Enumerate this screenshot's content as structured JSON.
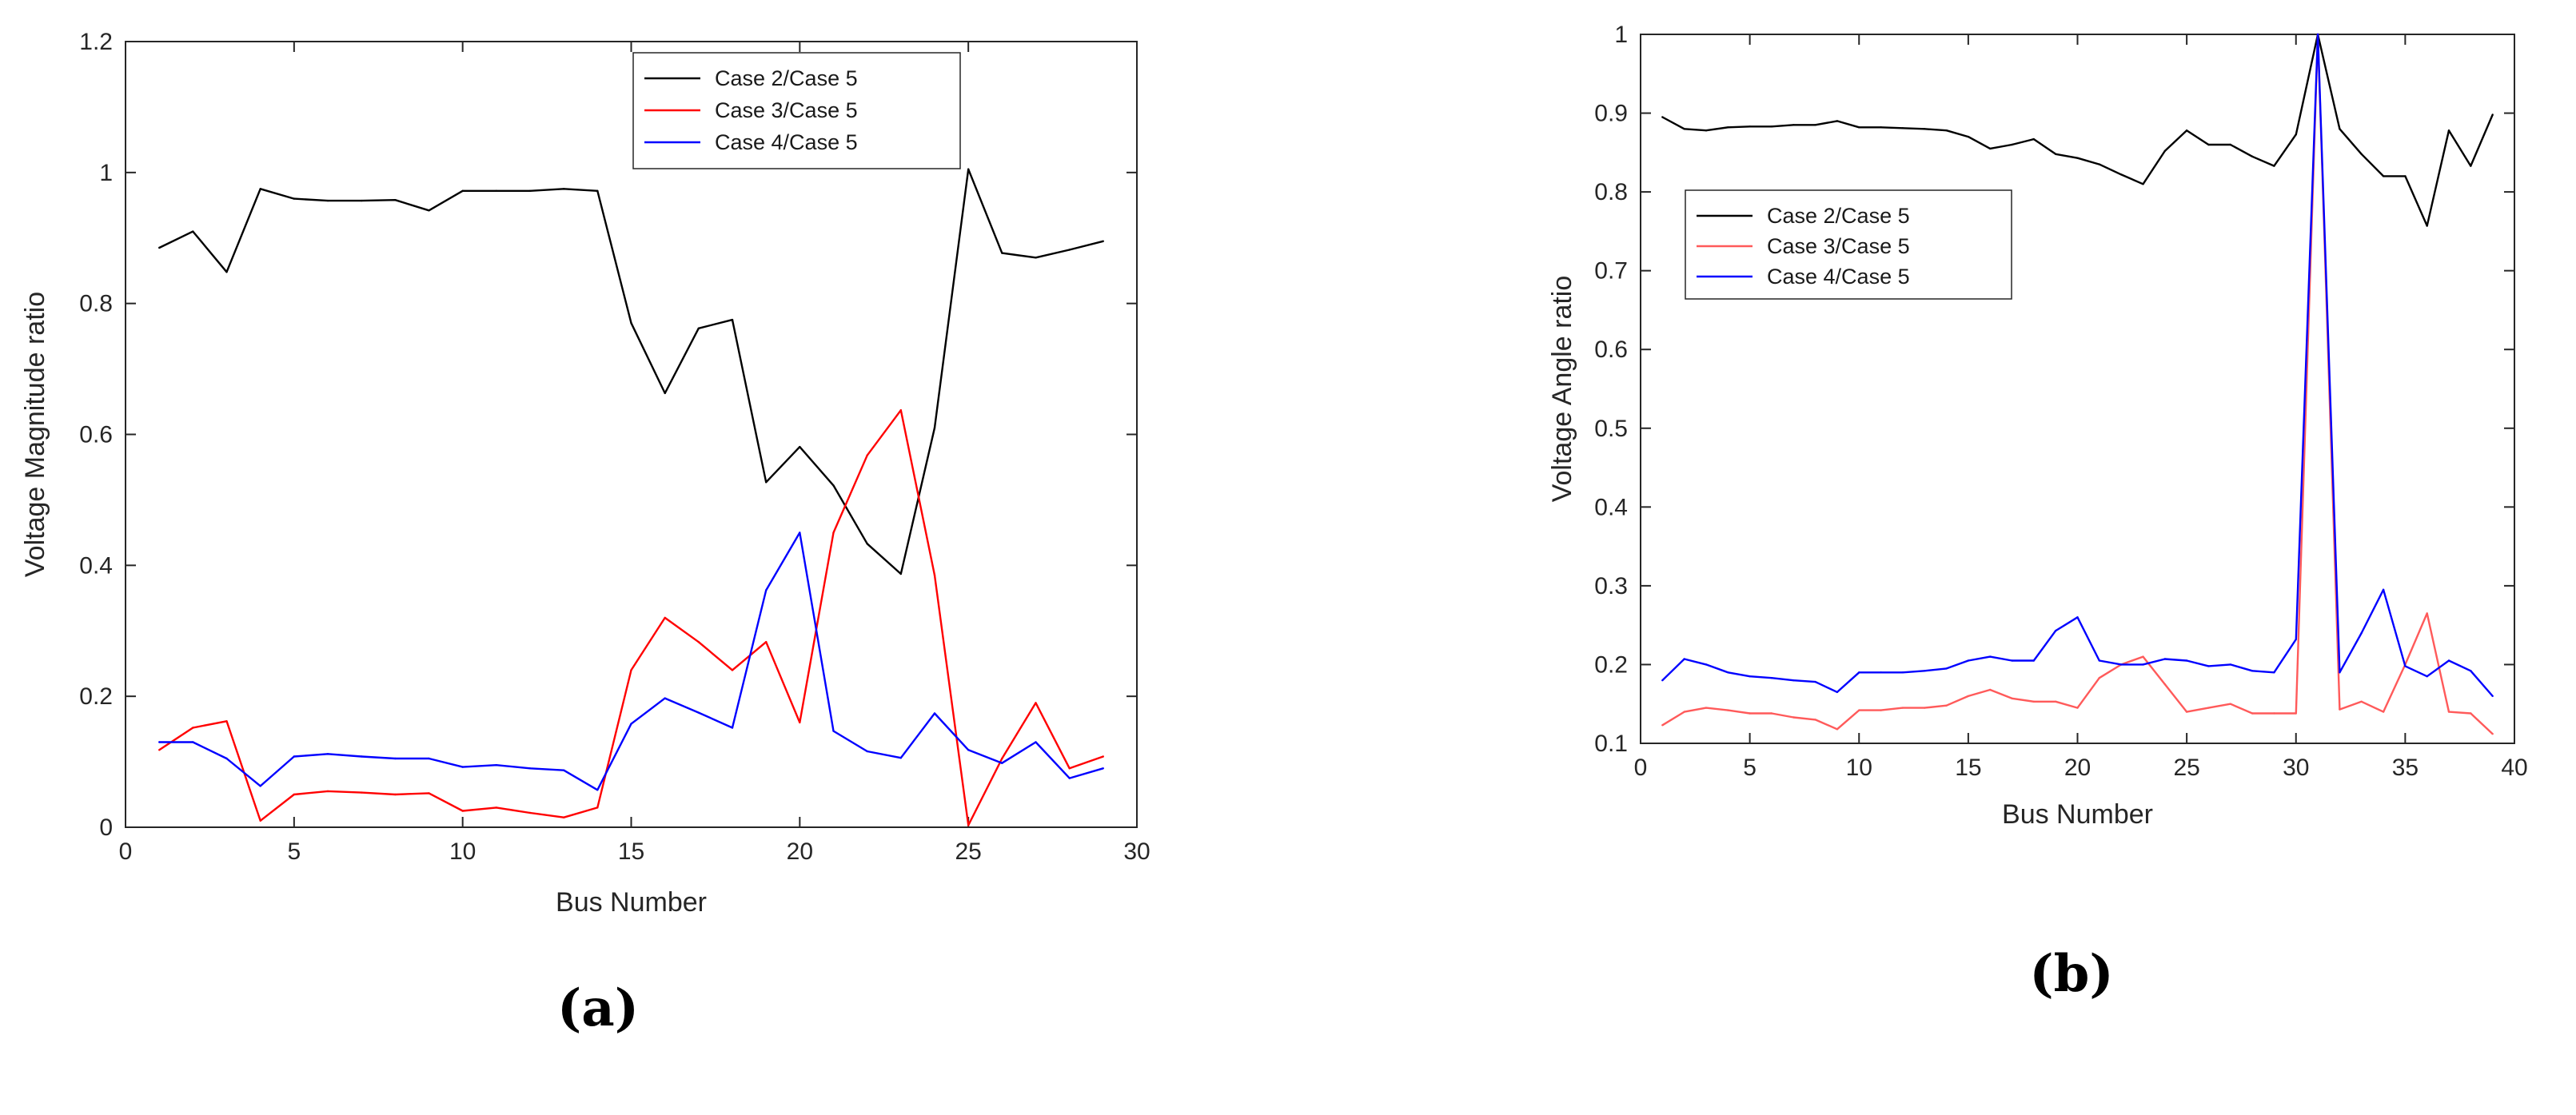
{
  "chart_data": [
    {
      "type": "line",
      "panel_label": "(a)",
      "xlabel": "Bus Number",
      "ylabel": "Voltage Magnitude ratio",
      "xlim": [
        0,
        30
      ],
      "ylim": [
        0,
        1.2
      ],
      "xticks": [
        "0",
        "5",
        "10",
        "15",
        "20",
        "25",
        "30"
      ],
      "yticks": [
        "0",
        "0.2",
        "0.4",
        "0.6",
        "0.8",
        "1",
        "1.2"
      ],
      "grid": false,
      "legend_position": "top-right",
      "x": [
        1,
        2,
        3,
        4,
        5,
        6,
        7,
        8,
        9,
        10,
        11,
        12,
        13,
        14,
        15,
        16,
        17,
        18,
        19,
        20,
        21,
        22,
        23,
        24,
        25,
        26,
        27,
        28,
        29
      ],
      "series": [
        {
          "name": "Case 2/Case 5",
          "color": "#000000",
          "values": [
            0.885,
            0.91,
            0.848,
            0.975,
            0.96,
            0.957,
            0.957,
            0.958,
            0.942,
            0.972,
            0.972,
            0.972,
            0.975,
            0.972,
            0.77,
            0.663,
            0.762,
            0.775,
            0.527,
            0.581,
            0.522,
            0.433,
            0.387,
            0.61,
            1.005,
            0.877,
            0.87,
            0.882,
            0.895
          ]
        },
        {
          "name": "Case 3/Case 5",
          "color": "#ff0000",
          "values": [
            0.118,
            0.152,
            0.162,
            0.01,
            0.05,
            0.055,
            0.053,
            0.05,
            0.052,
            0.025,
            0.03,
            0.022,
            0.015,
            0.03,
            0.24,
            0.32,
            0.283,
            0.24,
            0.283,
            0.16,
            0.45,
            0.568,
            0.637,
            0.385,
            0.003,
            0.105,
            0.19,
            0.09,
            0.108
          ]
        },
        {
          "name": "Case 4/Case 5",
          "color": "#0000ff",
          "values": [
            0.13,
            0.13,
            0.105,
            0.063,
            0.108,
            0.112,
            0.108,
            0.105,
            0.105,
            0.092,
            0.095,
            0.09,
            0.087,
            0.057,
            0.158,
            0.197,
            0.175,
            0.152,
            0.362,
            0.45,
            0.147,
            0.116,
            0.106,
            0.174,
            0.118,
            0.098,
            0.13,
            0.075,
            0.09
          ]
        }
      ]
    },
    {
      "type": "line",
      "panel_label": "(b)",
      "xlabel": "Bus Number",
      "ylabel": "Voltage Angle ratio",
      "xlim": [
        0,
        40
      ],
      "ylim": [
        0.1,
        1
      ],
      "xticks": [
        "0",
        "5",
        "10",
        "15",
        "20",
        "25",
        "30",
        "35",
        "40"
      ],
      "yticks": [
        "0.1",
        "0.2",
        "0.3",
        "0.4",
        "0.5",
        "0.6",
        "0.7",
        "0.8",
        "0.9",
        "1"
      ],
      "grid": false,
      "legend_position": "top-left",
      "x": [
        1,
        2,
        3,
        4,
        5,
        6,
        7,
        8,
        9,
        10,
        11,
        12,
        13,
        14,
        15,
        16,
        17,
        18,
        19,
        20,
        21,
        22,
        23,
        24,
        25,
        26,
        27,
        28,
        29,
        30,
        31,
        32,
        33,
        34,
        35,
        36,
        37,
        38,
        39
      ],
      "series": [
        {
          "name": "Case 2/Case 5",
          "color": "#000000",
          "values": [
            0.895,
            0.88,
            0.878,
            0.882,
            0.883,
            0.883,
            0.885,
            0.885,
            0.89,
            0.882,
            0.882,
            0.881,
            0.88,
            0.878,
            0.87,
            0.855,
            0.86,
            0.867,
            0.848,
            0.843,
            0.835,
            0.822,
            0.81,
            0.852,
            0.878,
            0.86,
            0.86,
            0.845,
            0.833,
            0.873,
            1.0,
            0.88,
            0.848,
            0.82,
            0.82,
            0.757,
            0.878,
            0.833,
            0.898
          ]
        },
        {
          "name": "Case 3/Case 5",
          "color": "#ff5a5a",
          "values": [
            0.123,
            0.14,
            0.145,
            0.142,
            0.138,
            0.138,
            0.133,
            0.13,
            0.118,
            0.142,
            0.142,
            0.145,
            0.145,
            0.148,
            0.16,
            0.168,
            0.157,
            0.153,
            0.153,
            0.145,
            0.183,
            0.2,
            0.21,
            0.175,
            0.14,
            0.145,
            0.15,
            0.138,
            0.138,
            0.138,
            1.0,
            0.143,
            0.153,
            0.14,
            0.2,
            0.265,
            0.14,
            0.138,
            0.112
          ]
        },
        {
          "name": "Case 4/Case 5",
          "color": "#0000ff",
          "values": [
            0.18,
            0.207,
            0.2,
            0.19,
            0.185,
            0.183,
            0.18,
            0.178,
            0.165,
            0.19,
            0.19,
            0.19,
            0.192,
            0.195,
            0.205,
            0.21,
            0.205,
            0.205,
            0.243,
            0.26,
            0.205,
            0.2,
            0.2,
            0.207,
            0.205,
            0.198,
            0.2,
            0.192,
            0.19,
            0.232,
            1.0,
            0.19,
            0.24,
            0.295,
            0.198,
            0.185,
            0.205,
            0.192,
            0.16
          ]
        }
      ]
    }
  ]
}
